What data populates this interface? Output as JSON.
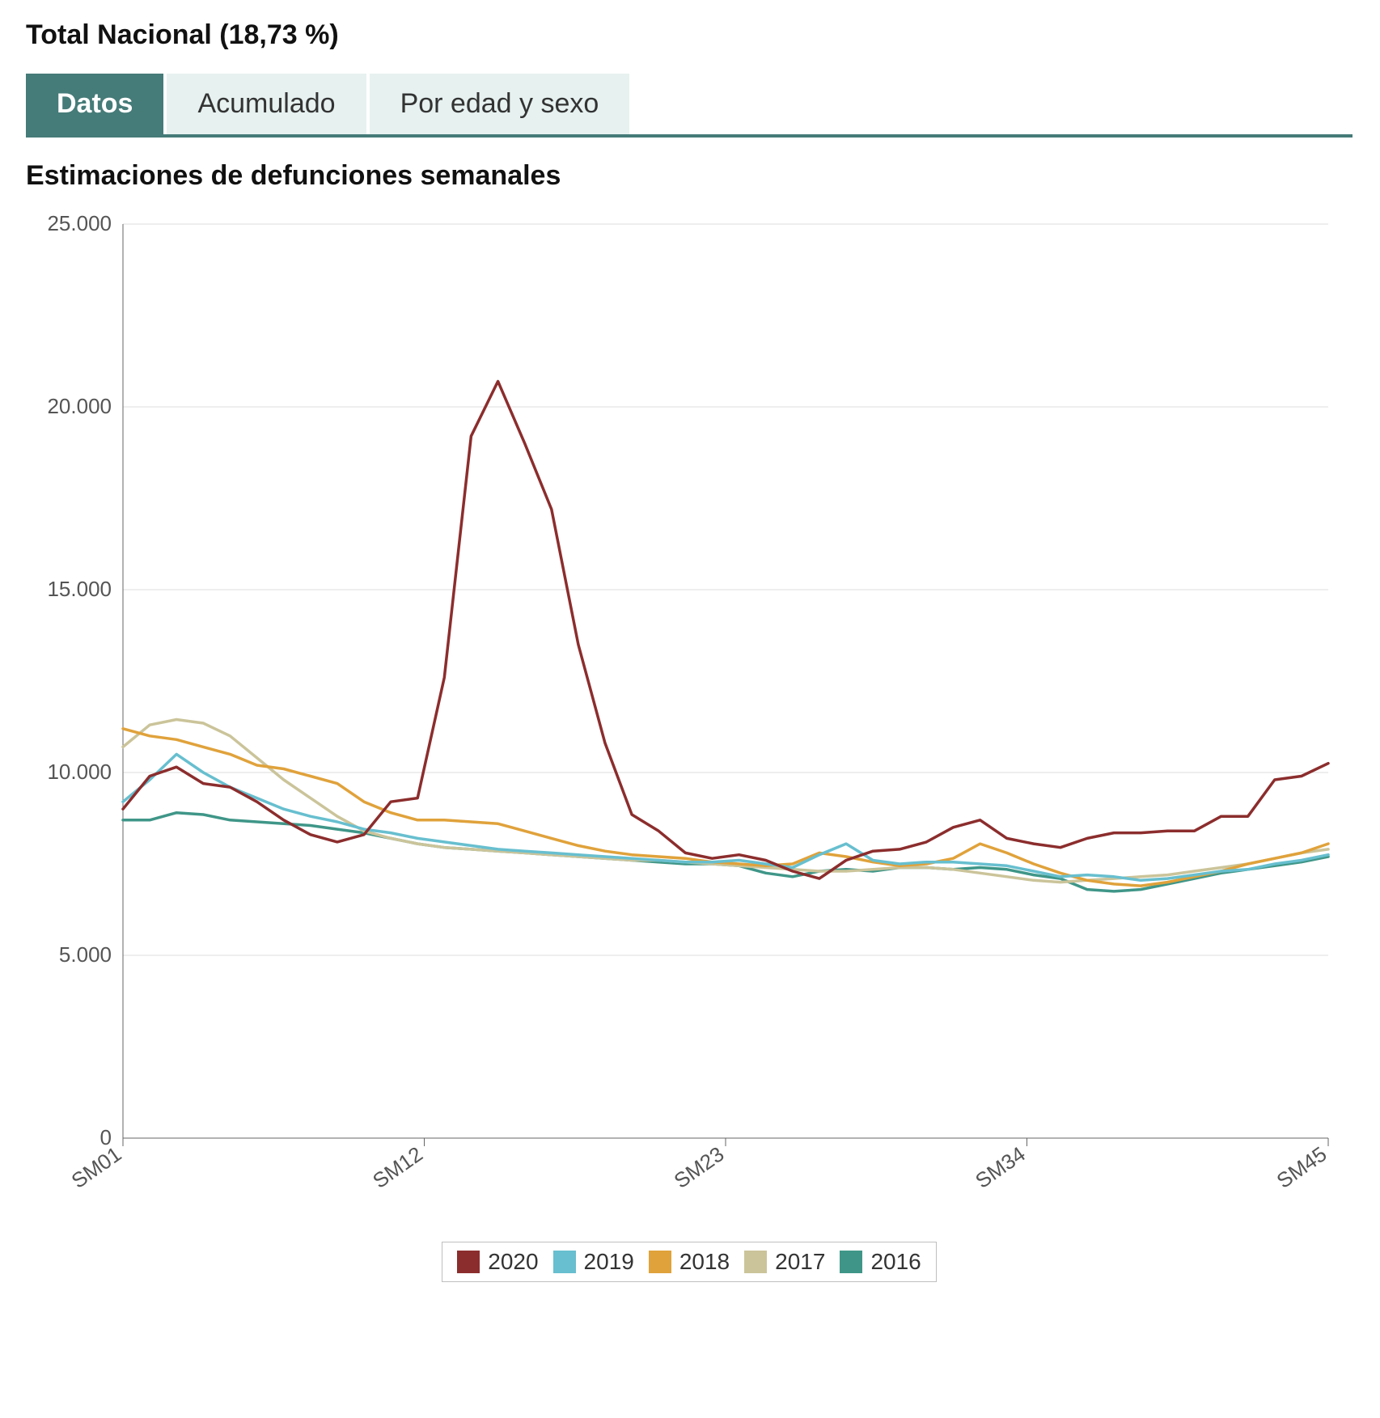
{
  "header": {
    "title": "Total Nacional (18,73 %)"
  },
  "tabs": {
    "items": [
      {
        "label": "Datos",
        "active": true
      },
      {
        "label": "Acumulado",
        "active": false
      },
      {
        "label": "Por edad y sexo",
        "active": false
      }
    ]
  },
  "chart": {
    "title": "Estimaciones de defunciones semanales",
    "type": "line",
    "background_color": "#ffffff",
    "grid_color": "#dcdcdc",
    "axis_color": "#666666",
    "label_fontsize": 26,
    "line_width": 3.5,
    "y": {
      "min": 0,
      "max": 25000,
      "ticks": [
        0,
        5000,
        10000,
        15000,
        20000,
        25000
      ],
      "tick_labels": [
        "0",
        "5.000",
        "10.000",
        "15.000",
        "20.000",
        "25.000"
      ]
    },
    "x": {
      "min": 1,
      "max": 45,
      "ticks": [
        1,
        12,
        23,
        34,
        45
      ],
      "tick_labels": [
        "SM01",
        "SM12",
        "SM23",
        "SM34",
        "SM45"
      ]
    },
    "series": [
      {
        "name": "2020",
        "color": "#8c2d2d",
        "values": [
          9000,
          9900,
          10150,
          9700,
          9600,
          9200,
          8700,
          8300,
          8100,
          8300,
          9200,
          9300,
          12600,
          19200,
          20700,
          19000,
          17200,
          13500,
          10800,
          8850,
          8400,
          7800,
          7650,
          7750,
          7600,
          7300,
          7100,
          7600,
          7850,
          7900,
          8100,
          8500,
          8700,
          8200,
          8050,
          7950,
          8200,
          8350,
          8350,
          8400,
          8400,
          8800,
          8800,
          9800,
          9900,
          10250
        ]
      },
      {
        "name": "2019",
        "color": "#67bfcf",
        "values": [
          9200,
          9800,
          10500,
          10000,
          9600,
          9300,
          9000,
          8800,
          8650,
          8450,
          8350,
          8200,
          8100,
          8000,
          7900,
          7850,
          7800,
          7750,
          7700,
          7650,
          7600,
          7550,
          7550,
          7600,
          7500,
          7400,
          7750,
          8050,
          7600,
          7500,
          7550,
          7550,
          7500,
          7450,
          7300,
          7150,
          7200,
          7150,
          7050,
          7100,
          7200,
          7300,
          7350,
          7500,
          7600,
          7750
        ]
      },
      {
        "name": "2018",
        "color": "#e0a23b",
        "values": [
          11200,
          11000,
          10900,
          10700,
          10500,
          10200,
          10100,
          9900,
          9700,
          9200,
          8900,
          8700,
          8700,
          8650,
          8600,
          8400,
          8200,
          8000,
          7850,
          7750,
          7700,
          7650,
          7550,
          7500,
          7450,
          7500,
          7800,
          7700,
          7550,
          7450,
          7500,
          7650,
          8050,
          7800,
          7500,
          7250,
          7050,
          6950,
          6900,
          7000,
          7150,
          7300,
          7500,
          7650,
          7800,
          8050
        ]
      },
      {
        "name": "2017",
        "color": "#cbc49a",
        "values": [
          10700,
          11300,
          11450,
          11350,
          11000,
          10400,
          9800,
          9300,
          8800,
          8400,
          8200,
          8050,
          7950,
          7900,
          7850,
          7800,
          7750,
          7700,
          7650,
          7600,
          7600,
          7550,
          7500,
          7450,
          7400,
          7350,
          7300,
          7300,
          7350,
          7400,
          7400,
          7350,
          7250,
          7150,
          7050,
          7000,
          7050,
          7100,
          7150,
          7200,
          7300,
          7400,
          7500,
          7650,
          7800,
          7900
        ]
      },
      {
        "name": "2016",
        "color": "#3f9688",
        "values": [
          8700,
          8700,
          8900,
          8850,
          8700,
          8650,
          8600,
          8550,
          8450,
          8350,
          8200,
          8050,
          7950,
          7900,
          7850,
          7800,
          7750,
          7700,
          7650,
          7600,
          7550,
          7500,
          7500,
          7450,
          7250,
          7150,
          7300,
          7350,
          7300,
          7400,
          7400,
          7350,
          7400,
          7350,
          7200,
          7100,
          6800,
          6750,
          6800,
          6950,
          7100,
          7250,
          7350,
          7450,
          7550,
          7700
        ]
      }
    ],
    "legend": {
      "border_color": "#bfbfbf",
      "fontsize": 28
    }
  }
}
